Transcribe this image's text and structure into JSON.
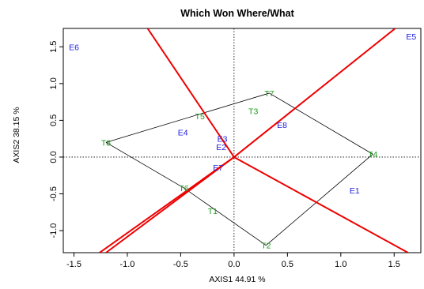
{
  "chart_data": {
    "type": "scatter",
    "title": "Which Won Where/What",
    "xlabel": "AXIS1 44.91 %",
    "ylabel": "AXIS2 38.15 %",
    "xlim": [
      -1.6,
      1.75
    ],
    "ylim": [
      -1.3,
      1.75
    ],
    "xticks": [
      -1.5,
      -1.0,
      -0.5,
      0.0,
      0.5,
      1.0,
      1.5
    ],
    "xtick_labels": [
      "-1.5",
      "-1.0",
      "-0.5",
      "0.0",
      "0.5",
      "1.0",
      "1.5"
    ],
    "yticks": [
      -1.0,
      -0.5,
      0.0,
      0.5,
      1.0,
      1.5
    ],
    "ytick_labels": [
      "-1.0",
      "-0.5",
      "0.0",
      "0.5",
      "1.0",
      "1.5"
    ],
    "origin": [
      0,
      0
    ],
    "colors": {
      "genotypes": "#1a9a1a",
      "environments": "#2020e0",
      "sectors": "#ee0000",
      "polygon": "#000000"
    },
    "series": [
      {
        "name": "T",
        "color": "#1a9a1a",
        "points": [
          {
            "label": "T7",
            "x": 0.33,
            "y": 0.87
          },
          {
            "label": "T4",
            "x": 1.3,
            "y": 0.04
          },
          {
            "label": "T2",
            "x": 0.3,
            "y": -1.2
          },
          {
            "label": "T1",
            "x": -0.2,
            "y": -0.73
          },
          {
            "label": "T6",
            "x": -0.47,
            "y": -0.42
          },
          {
            "label": "T3",
            "x": 0.18,
            "y": 0.63
          },
          {
            "label": "T5",
            "x": -0.32,
            "y": 0.56
          },
          {
            "label": "T8",
            "x": -1.2,
            "y": 0.2
          }
        ]
      },
      {
        "name": "E",
        "color": "#2020e0",
        "points": [
          {
            "label": "E1",
            "x": 1.13,
            "y": -0.45
          },
          {
            "label": "E2",
            "x": -0.12,
            "y": 0.14
          },
          {
            "label": "E3",
            "x": -0.11,
            "y": 0.25
          },
          {
            "label": "E4",
            "x": -0.48,
            "y": 0.34
          },
          {
            "label": "E5",
            "x": 1.66,
            "y": 1.64
          },
          {
            "label": "E6",
            "x": -1.5,
            "y": 1.5
          },
          {
            "label": "E7",
            "x": -0.15,
            "y": -0.14
          },
          {
            "label": "E8",
            "x": 0.45,
            "y": 0.44
          }
        ]
      }
    ],
    "polygon": [
      "T7",
      "T4",
      "T2",
      "T6",
      "T8",
      "T7"
    ],
    "sector_rays": [
      {
        "to": [
          -0.81,
          1.75
        ]
      },
      {
        "to": [
          1.63,
          -1.3
        ]
      },
      {
        "to": [
          1.51,
          1.75
        ]
      },
      {
        "to": [
          -1.26,
          -1.3
        ]
      },
      {
        "to": [
          -1.2,
          -1.3
        ]
      }
    ]
  }
}
